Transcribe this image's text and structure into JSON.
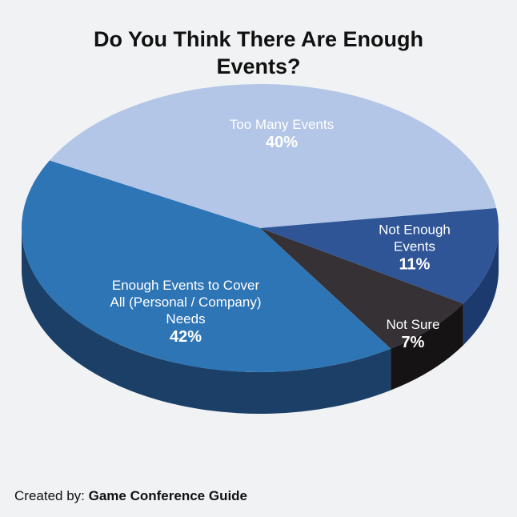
{
  "title_line1": "Do You Think There Are Enough",
  "title_line2": "Events?",
  "footer": {
    "prefix": "Created by:",
    "source": "Game Conference Guide"
  },
  "colors": {
    "background": "#f1f2f3",
    "too_many": "#b3c6e7",
    "not_enough": "#2f5597",
    "not_sure": "#353134",
    "enough": "#2e75b6"
  },
  "chart_data": {
    "type": "pie",
    "title": "Do You Think There Are Enough Events?",
    "slices": [
      {
        "name": "Too Many Events",
        "label_lines": [
          "Too Many Events"
        ],
        "value": 40,
        "value_label": "40%",
        "color": "#b3c6e7",
        "side_color": "#8da3c9"
      },
      {
        "name": "Not Enough Events",
        "label_lines": [
          "Not Enough",
          "Events"
        ],
        "value": 11,
        "value_label": "11%",
        "color": "#2f5597",
        "side_color": "#1d3a6e"
      },
      {
        "name": "Not Sure",
        "label_lines": [
          "Not Sure"
        ],
        "value": 7,
        "value_label": "7%",
        "color": "#353134",
        "side_color": "#151314"
      },
      {
        "name": "Enough Events to Cover All (Personal / Company) Needs",
        "label_lines": [
          "Enough Events to Cover",
          "All (Personal / Company)",
          "Needs"
        ],
        "value": 42,
        "value_label": "42%",
        "color": "#2e75b6",
        "side_color": "#1b3f66"
      }
    ]
  }
}
